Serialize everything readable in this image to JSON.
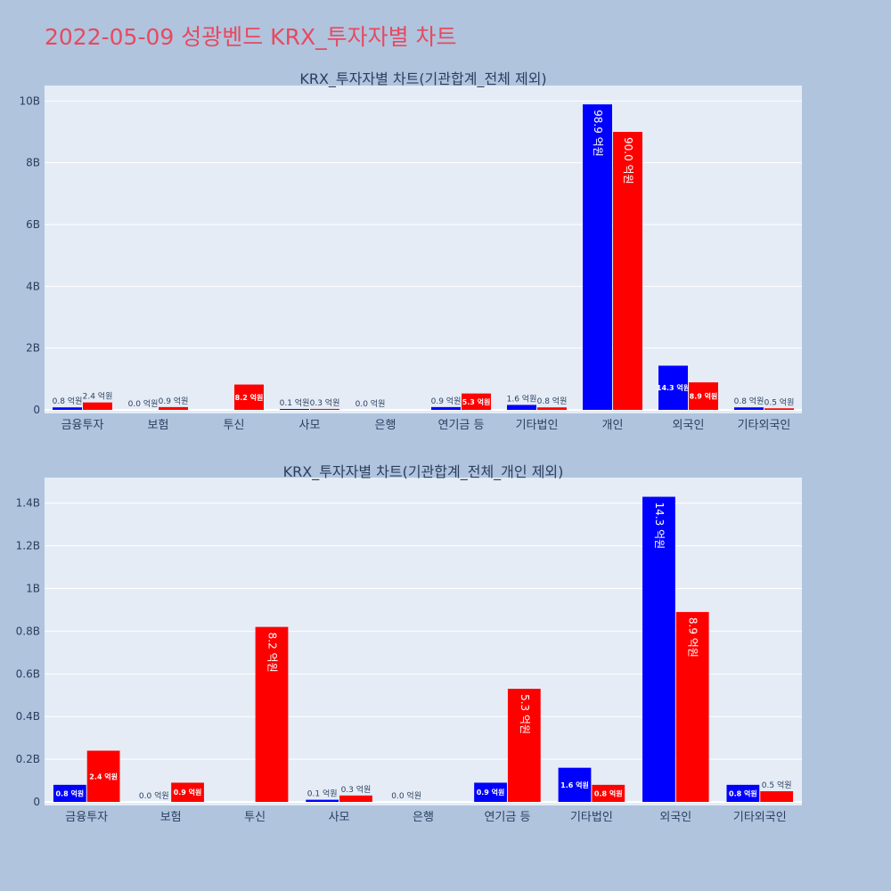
{
  "page": {
    "title": "2022-05-09 성광벤드 KRX_투자자별 차트"
  },
  "colors": {
    "background": "#b0c4de",
    "plot_bg": "#e5ecf6",
    "title": "#e8495f",
    "series_a": "#0000ff",
    "series_b": "#ff0000",
    "text": "#2a3f5f"
  },
  "chart_data": [
    {
      "type": "bar",
      "title": "KRX_투자자별 차트(기관합계_전체 제외)",
      "categories": [
        "금융투자",
        "보험",
        "투신",
        "사모",
        "은행",
        "연기금 등",
        "기타법인",
        "개인",
        "외국인",
        "기타외국인"
      ],
      "ylim": [
        0,
        10.5
      ],
      "y_unit": "B",
      "yticks": [
        0,
        2,
        4,
        6,
        8,
        10
      ],
      "ytick_labels": [
        "0",
        "2B",
        "4B",
        "6B",
        "8B",
        "10B"
      ],
      "grid": true,
      "series": [
        {
          "color": "#0000ff",
          "values": [
            0.08,
            0.0,
            null,
            0.01,
            0.0,
            0.09,
            0.16,
            9.89,
            1.43,
            0.08
          ],
          "labels": [
            "0.8 억원",
            "0.0 억원",
            "",
            "0.1 억원",
            "0.0 억원",
            "0.9 억원",
            "1.6 억원",
            "98.9 억원",
            "14.3 억원",
            "0.8 억원"
          ]
        },
        {
          "color": "#ff0000",
          "values": [
            0.24,
            0.09,
            0.82,
            0.03,
            null,
            0.53,
            0.08,
            9.0,
            0.89,
            0.05
          ],
          "labels": [
            "2.4 억원",
            "0.9 억원",
            "8.2 억원",
            "0.3 억원",
            "",
            "5.3 억원",
            "0.8 억원",
            "90.0 억원",
            "8.9 억원",
            "0.5 억원"
          ]
        }
      ]
    },
    {
      "type": "bar",
      "title": "KRX_투자자별 차트(기관합계_전체_개인 제외)",
      "categories": [
        "금융투자",
        "보험",
        "투신",
        "사모",
        "은행",
        "연기금 등",
        "기타법인",
        "외국인",
        "기타외국인"
      ],
      "ylim": [
        0,
        1.52
      ],
      "y_unit": "B",
      "yticks": [
        0,
        0.2,
        0.4,
        0.6,
        0.8,
        1.0,
        1.2,
        1.4
      ],
      "ytick_labels": [
        "0",
        "0.2B",
        "0.4B",
        "0.6B",
        "0.8B",
        "1B",
        "1.2B",
        "1.4B"
      ],
      "grid": true,
      "series": [
        {
          "color": "#0000ff",
          "values": [
            0.08,
            0.0,
            null,
            0.01,
            0.0,
            0.09,
            0.16,
            1.43,
            0.08
          ],
          "labels": [
            "0.8 억원",
            "0.0 억원",
            "",
            "0.1 억원",
            "0.0 억원",
            "0.9 억원",
            "1.6 억원",
            "14.3 억원",
            "0.8 억원"
          ]
        },
        {
          "color": "#ff0000",
          "values": [
            0.24,
            0.09,
            0.82,
            0.03,
            null,
            0.53,
            0.08,
            0.89,
            0.05
          ],
          "labels": [
            "2.4 억원",
            "0.9 억원",
            "8.2 억원",
            "0.3 억원",
            "",
            "5.3 억원",
            "0.8 억원",
            "8.9 억원",
            "0.5 억원"
          ]
        }
      ]
    }
  ]
}
